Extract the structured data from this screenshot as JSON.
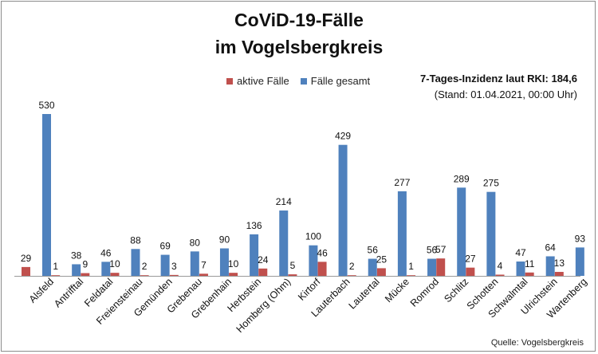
{
  "title_line1": "CoViD-19-Fälle",
  "title_line2": "im Vogelsbergkreis",
  "note_line1": "7-Tages-Inzidenz laut RKI: 184,6",
  "note_line2": "(Stand: 01.04.2021, 00:00 Uhr)",
  "source": "Quelle: Vogelsbergkreis",
  "colors": {
    "active": "#c0504d",
    "total": "#4f81bd"
  },
  "chart_data": {
    "type": "bar",
    "categories": [
      "Alsfeld",
      "Antrifftal",
      "Feldatal",
      "Freiensteinau",
      "Gemünden",
      "Grebenau",
      "Grebenhain",
      "Herbstein",
      "Homberg (Ohm)",
      "Kirtorf",
      "Lauterbach",
      "Lautertal",
      "Mücke",
      "Romrod",
      "Schlitz",
      "Schotten",
      "Schwalmtal",
      "Ulrichstein",
      "Wartenberg"
    ],
    "series": [
      {
        "name": "aktive Fälle",
        "values": [
          29,
          1,
          9,
          10,
          2,
          3,
          7,
          10,
          24,
          5,
          46,
          2,
          25,
          1,
          57,
          27,
          4,
          11,
          13
        ]
      },
      {
        "name": "Fälle gesamt",
        "values": [
          530,
          38,
          46,
          88,
          69,
          80,
          90,
          136,
          214,
          100,
          429,
          56,
          277,
          56,
          289,
          275,
          47,
          64,
          93
        ]
      }
    ],
    "ylim": [
      0,
      560
    ],
    "grid": false,
    "legend": "top-center"
  }
}
